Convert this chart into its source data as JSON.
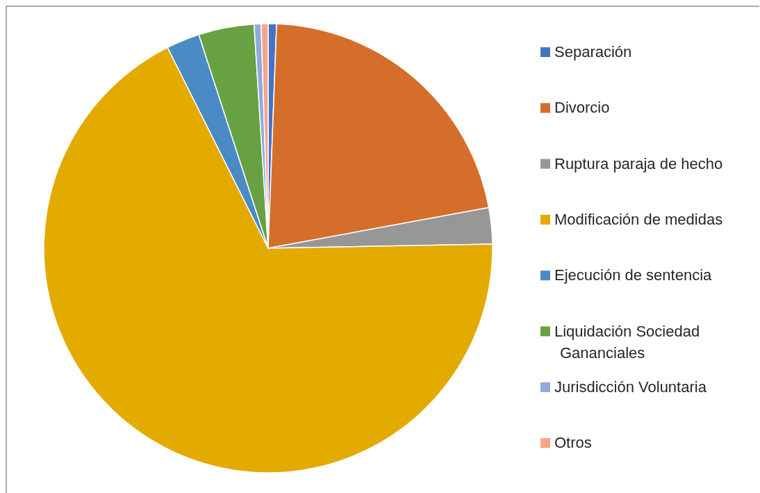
{
  "chart_data": {
    "type": "pie",
    "categories": [
      "Separación",
      "Divorcio",
      "Ruptura paraja de hecho",
      "Modificación de medidas",
      "Ejecución de sentencia",
      "Liquidación Sociedad Gananciales",
      "Jurisdicción Voluntaria",
      "Otros"
    ],
    "values": [
      0.6,
      21.5,
      2.6,
      67.9,
      2.4,
      4.0,
      0.5,
      0.5
    ],
    "colors": [
      "#4472c4",
      "#d56e2b",
      "#979797",
      "#e3aa00",
      "#4a8bc5",
      "#67a142",
      "#8faadc",
      "#f4a58a"
    ],
    "legend": "right"
  }
}
